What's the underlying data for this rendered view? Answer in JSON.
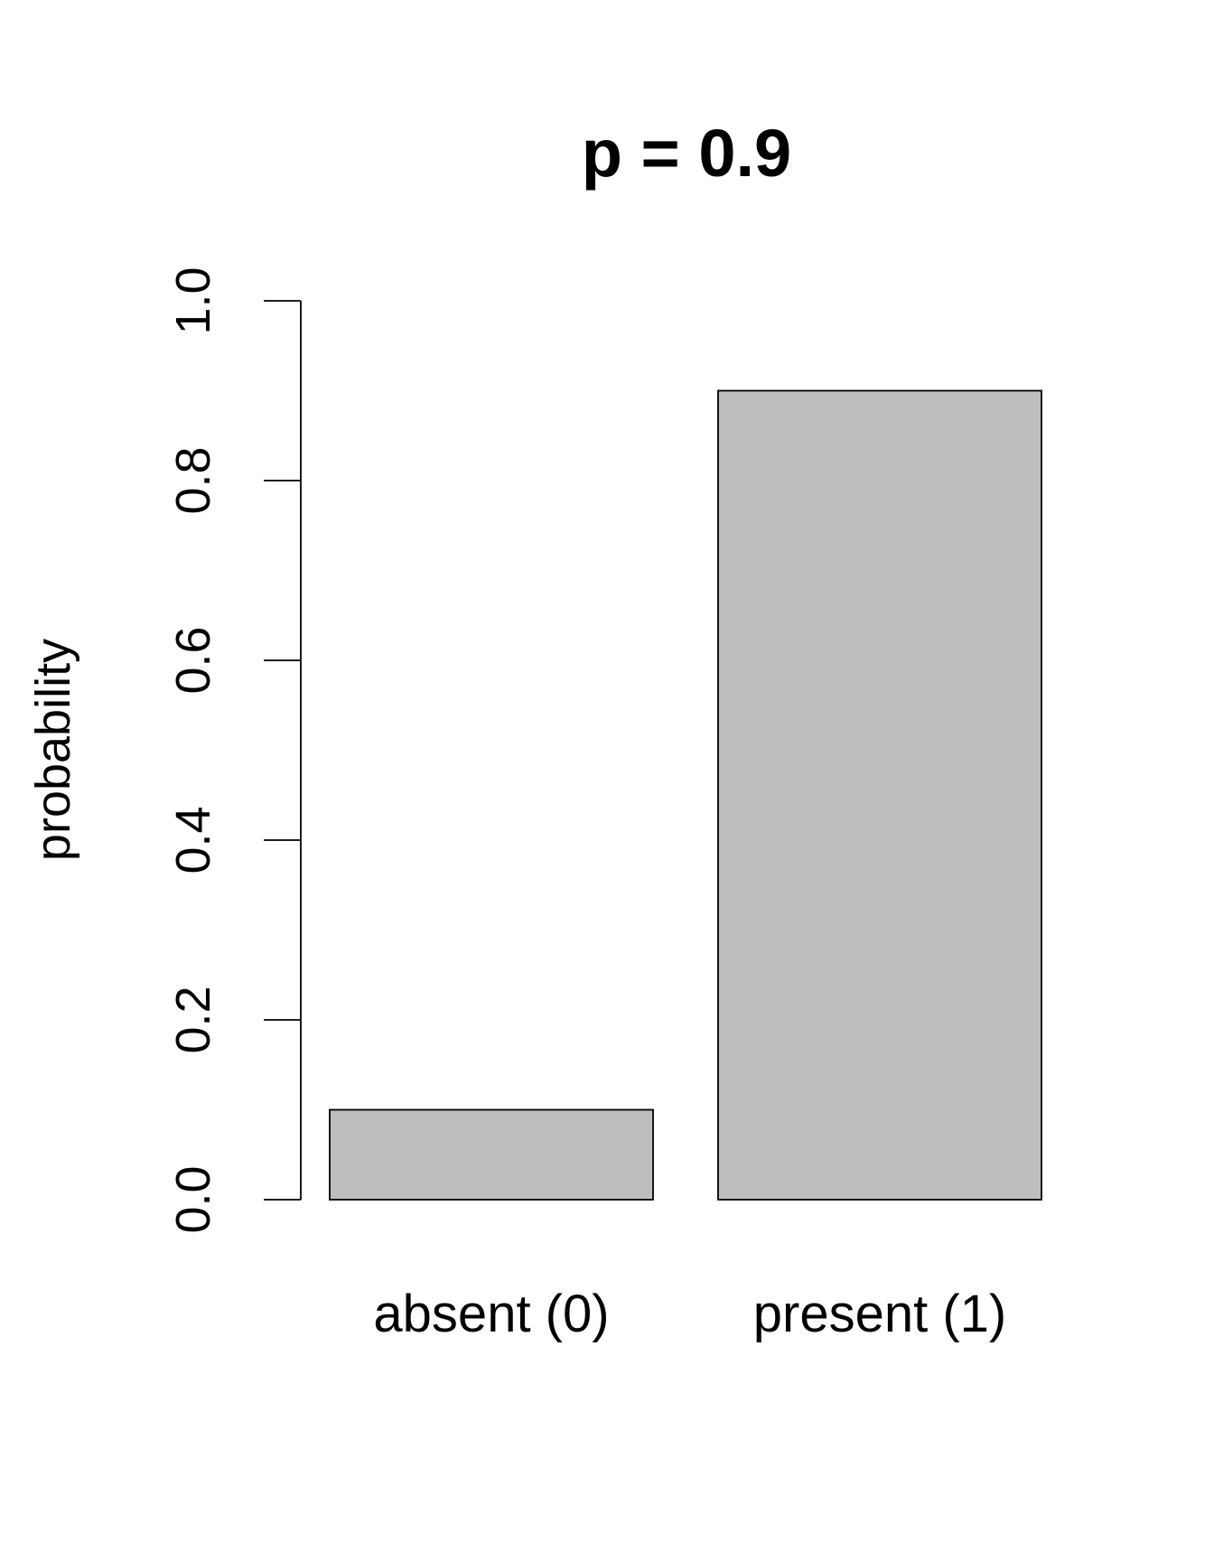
{
  "chart_data": {
    "type": "bar",
    "title": "p = 0.9",
    "ylabel": "probability",
    "xlabel": "",
    "categories": [
      "absent (0)",
      "present (1)"
    ],
    "values": [
      0.1,
      0.9
    ],
    "ylim": [
      0,
      1
    ],
    "yticks": [
      0.0,
      0.2,
      0.4,
      0.6,
      0.8,
      1.0
    ],
    "ytick_labels": [
      "0.0",
      "0.2",
      "0.4",
      "0.6",
      "0.8",
      "1.0"
    ],
    "bar_color": "#bebebe",
    "bar_edge_color": "#000000",
    "grid": false,
    "legend": "none"
  }
}
